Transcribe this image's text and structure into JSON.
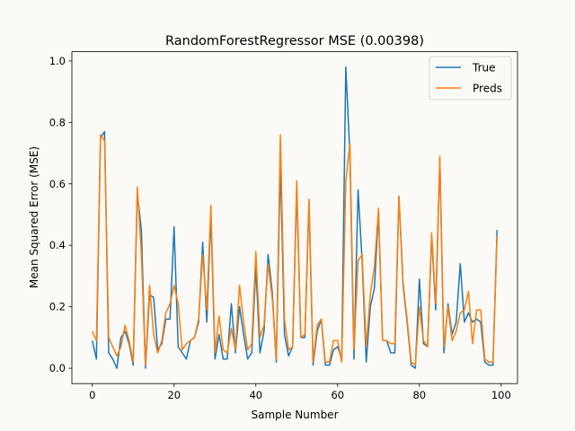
{
  "chart_data": {
    "type": "line",
    "title": "RandomForestRegressor MSE (0.00398)",
    "xlabel": "Sample Number",
    "ylabel": "Mean Squared Error (MSE)",
    "xlim": [
      -5,
      104
    ],
    "ylim": [
      -0.05,
      1.03
    ],
    "xticks": [
      0,
      20,
      40,
      60,
      80,
      100
    ],
    "xtick_labels": [
      "0",
      "20",
      "40",
      "60",
      "80",
      "100"
    ],
    "yticks": [
      0.0,
      0.2,
      0.4,
      0.6,
      0.8,
      1.0
    ],
    "ytick_labels": [
      "0.0",
      "0.2",
      "0.4",
      "0.6",
      "0.8",
      "1.0"
    ],
    "grid": false,
    "legend_position": "top-right",
    "x": [
      0,
      1,
      2,
      3,
      4,
      5,
      6,
      7,
      8,
      9,
      10,
      11,
      12,
      13,
      14,
      15,
      16,
      17,
      18,
      19,
      20,
      21,
      22,
      23,
      24,
      25,
      26,
      27,
      28,
      29,
      30,
      31,
      32,
      33,
      34,
      35,
      36,
      37,
      38,
      39,
      40,
      41,
      42,
      43,
      44,
      45,
      46,
      47,
      48,
      49,
      50,
      51,
      52,
      53,
      54,
      55,
      56,
      57,
      58,
      59,
      60,
      61,
      62,
      63,
      64,
      65,
      66,
      67,
      68,
      69,
      70,
      71,
      72,
      73,
      74,
      75,
      76,
      77,
      78,
      79,
      80,
      81,
      82,
      83,
      84,
      85,
      86,
      87,
      88,
      89,
      90,
      91,
      92,
      93,
      94,
      95,
      96,
      97,
      98,
      99
    ],
    "series": [
      {
        "name": "True",
        "color": "#1f77b4",
        "values": [
          0.09,
          0.03,
          0.75,
          0.77,
          0.05,
          0.03,
          0.0,
          0.1,
          0.12,
          0.08,
          0.01,
          0.57,
          0.45,
          0.0,
          0.24,
          0.23,
          0.06,
          0.08,
          0.16,
          0.16,
          0.46,
          0.07,
          0.05,
          0.03,
          0.09,
          0.1,
          0.15,
          0.41,
          0.15,
          0.5,
          0.03,
          0.11,
          0.03,
          0.03,
          0.21,
          0.05,
          0.2,
          0.11,
          0.03,
          0.05,
          0.33,
          0.05,
          0.12,
          0.37,
          0.25,
          0.02,
          0.67,
          0.11,
          0.04,
          0.07,
          0.58,
          0.1,
          0.1,
          0.54,
          0.01,
          0.12,
          0.16,
          0.01,
          0.01,
          0.06,
          0.07,
          0.03,
          0.98,
          0.7,
          0.03,
          0.58,
          0.35,
          0.02,
          0.2,
          0.26,
          0.51,
          0.09,
          0.09,
          0.05,
          0.05,
          0.56,
          0.27,
          0.15,
          0.01,
          0.0,
          0.29,
          0.08,
          0.07,
          0.43,
          0.19,
          0.68,
          0.05,
          0.21,
          0.11,
          0.15,
          0.34,
          0.15,
          0.18,
          0.15,
          0.16,
          0.15,
          0.02,
          0.01,
          0.01,
          0.45
        ]
      },
      {
        "name": "Preds",
        "color": "#ff7f0e",
        "values": [
          0.12,
          0.09,
          0.76,
          0.74,
          0.1,
          0.07,
          0.04,
          0.07,
          0.14,
          0.09,
          0.02,
          0.59,
          0.37,
          0.01,
          0.27,
          0.11,
          0.05,
          0.09,
          0.18,
          0.21,
          0.27,
          0.21,
          0.06,
          0.08,
          0.09,
          0.1,
          0.16,
          0.37,
          0.19,
          0.53,
          0.05,
          0.17,
          0.06,
          0.05,
          0.13,
          0.06,
          0.27,
          0.15,
          0.06,
          0.08,
          0.38,
          0.1,
          0.14,
          0.34,
          0.23,
          0.03,
          0.76,
          0.16,
          0.06,
          0.07,
          0.61,
          0.1,
          0.11,
          0.55,
          0.02,
          0.14,
          0.16,
          0.02,
          0.02,
          0.09,
          0.09,
          0.02,
          0.61,
          0.73,
          0.06,
          0.35,
          0.37,
          0.07,
          0.24,
          0.33,
          0.52,
          0.09,
          0.09,
          0.08,
          0.08,
          0.56,
          0.28,
          0.16,
          0.02,
          0.01,
          0.2,
          0.09,
          0.07,
          0.44,
          0.21,
          0.69,
          0.07,
          0.2,
          0.09,
          0.12,
          0.18,
          0.19,
          0.25,
          0.08,
          0.19,
          0.19,
          0.03,
          0.02,
          0.02,
          0.43
        ]
      }
    ]
  }
}
